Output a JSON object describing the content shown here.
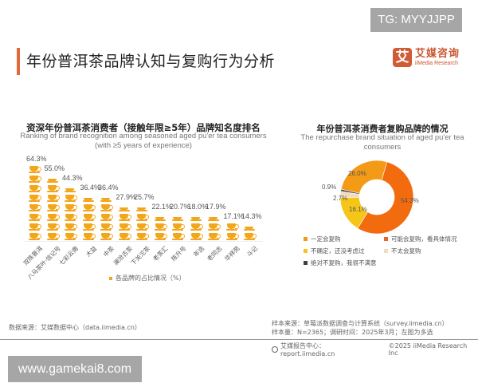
{
  "watermark_top": "TG: MYYJJPP",
  "watermark_bottom": "www.gamekai8.com",
  "page_title": "年份普洱茶品牌认知与复购行为分析",
  "logo": {
    "mark": "艾",
    "cn": "艾媒咨询",
    "en": "iiMedia Research",
    "color": "#d25a34"
  },
  "left_chart": {
    "title_cn": "资深年份普洱茶消费者（接触年限≥5年）品牌知名度排名",
    "title_en_line1": "Ranking of brand recognition among seasoned aged pu'er tea consumers",
    "title_en_line2": "(with ≥5 years of experience)",
    "legend": "各品牌的占比情况（%）"
  },
  "right_chart": {
    "title_cn": "年份普洱茶消费者复购品牌的情况",
    "title_en_line1": "The repurchase brand situation of aged pu'er tea",
    "title_en_line2": "consumers"
  },
  "chart_data": [
    {
      "type": "bar",
      "title": "资深年份普洱茶消费者（接触年限≥5年）品牌知名度排名",
      "subtitle": "Ranking of brand recognition among seasoned aged pu'er tea consumers (with ≥5 years of experience)",
      "categories": [
        "双陈普洱",
        "八马茶叶·信记号",
        "七彩云南",
        "大益",
        "中茶",
        "澜沧古茶",
        "下关沱茶",
        "老茶汇",
        "陈升号",
        "年选",
        "老同志",
        "华祥苑",
        "斗记"
      ],
      "values": [
        64.3,
        55.0,
        44.3,
        36.4,
        36.4,
        27.9,
        25.7,
        22.1,
        20.7,
        18.0,
        17.9,
        17.1,
        14.3
      ],
      "value_labels": [
        "64.3%",
        "55.0%",
        "44.3%",
        "36.4%",
        "36.4%",
        "27.9%",
        "25.7%",
        "22.1%",
        "20.7%",
        "18.0%",
        "17.9%",
        "17.1%",
        "14.3%"
      ],
      "legend": [
        "各品牌的占比情况（%）"
      ],
      "xlabel": "",
      "ylabel": "%",
      "color": "#f3a61c",
      "style": "pictogram (tea cups)"
    },
    {
      "type": "pie",
      "donut": true,
      "title": "年份普洱茶消费者复购品牌的情况",
      "subtitle": "The repurchase brand situation of aged pu'er tea consumers",
      "categories": [
        "可能会复购，看具体情况",
        "不确定，还没考虑过",
        "不太会复购",
        "绝对不复购，我很不满意",
        "一定会复购"
      ],
      "values": [
        54.3,
        16.1,
        2.7,
        0.9,
        26.0
      ],
      "value_labels": [
        "54.3%",
        "16.1%",
        "2.7%",
        "0.9%",
        "26.0%"
      ],
      "colors": [
        "#f26b0f",
        "#f5c518",
        "#f2dcc0",
        "#404040",
        "#f39a16"
      ],
      "legend_order": [
        "一定会复购",
        "可能会复购，看具体情况",
        "不确定，还没考虑过",
        "不太会复购",
        "绝对不复购，我很不满意"
      ]
    }
  ],
  "right_legend": [
    {
      "label": "一定会复购",
      "color": "#f39a16"
    },
    {
      "label": "可能会复购，看具体情况",
      "color": "#e2692a"
    },
    {
      "label": "不确定，还没考虑过",
      "color": "#f5c518"
    },
    {
      "label": "不太会复购",
      "color": "#f2dcc0"
    },
    {
      "label": "绝对不复购，我很不满意",
      "color": "#404040"
    }
  ],
  "footer": {
    "data_source": "数据来源：艾媒数据中心（data.iimedia.cn）",
    "sample_source": "样本来源：草莓派数据调查与计算系统（survey.iimedia.cn）",
    "sample_size": "样本量：N=2365；调研时间：2025年3月；左图为多选",
    "report_center": "艾媒报告中心：report.iimedia.cn",
    "copyright": "©2025  iiMedia Research  Inc"
  }
}
